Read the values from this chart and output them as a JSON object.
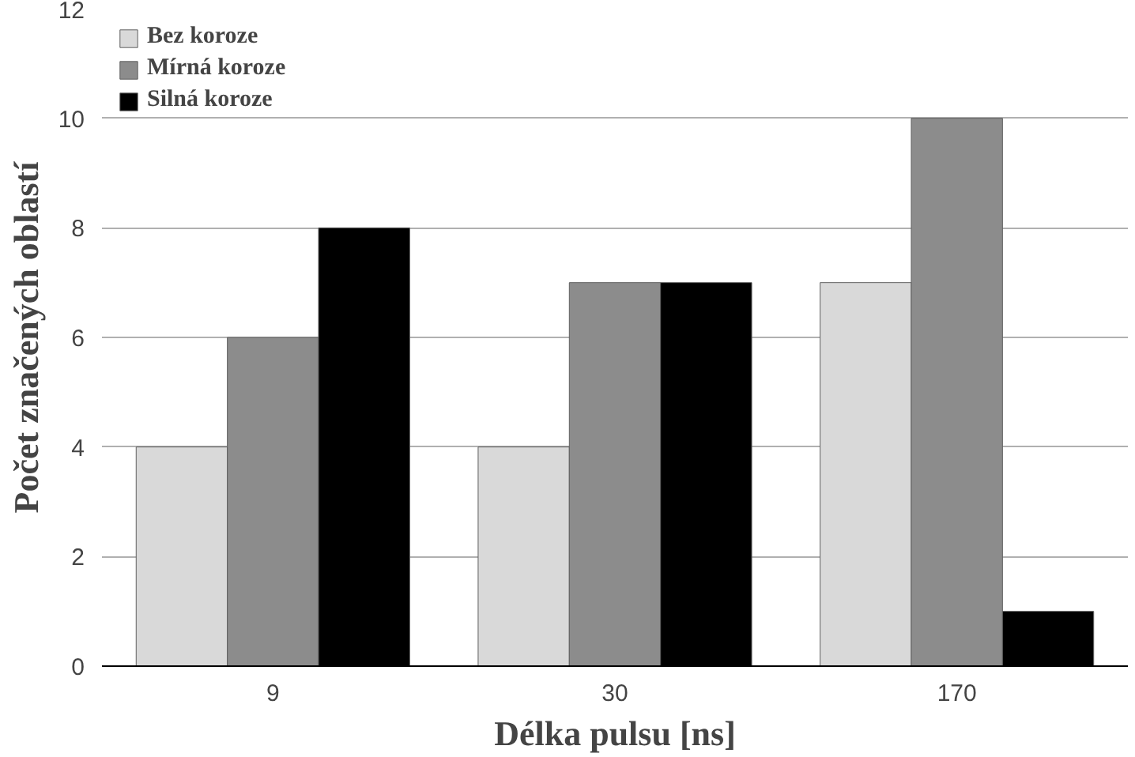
{
  "chart_data": {
    "type": "bar",
    "xlabel": "Délka pulsu [ns]",
    "ylabel": "Počet značených oblastí",
    "categories": [
      "9",
      "30",
      "170"
    ],
    "series": [
      {
        "name": "Bez koroze",
        "color": "#d9d9d9",
        "values": [
          4,
          4,
          7
        ]
      },
      {
        "name": "Mírná koroze",
        "color": "#8c8c8c",
        "values": [
          6,
          7,
          10
        ]
      },
      {
        "name": "Silná koroze",
        "color": "#000000",
        "values": [
          8,
          7,
          1
        ]
      }
    ],
    "ylim": [
      0,
      12
    ],
    "yticks": [
      0,
      2,
      4,
      6,
      8,
      10,
      12
    ],
    "grid": "y",
    "legend": "top left"
  }
}
